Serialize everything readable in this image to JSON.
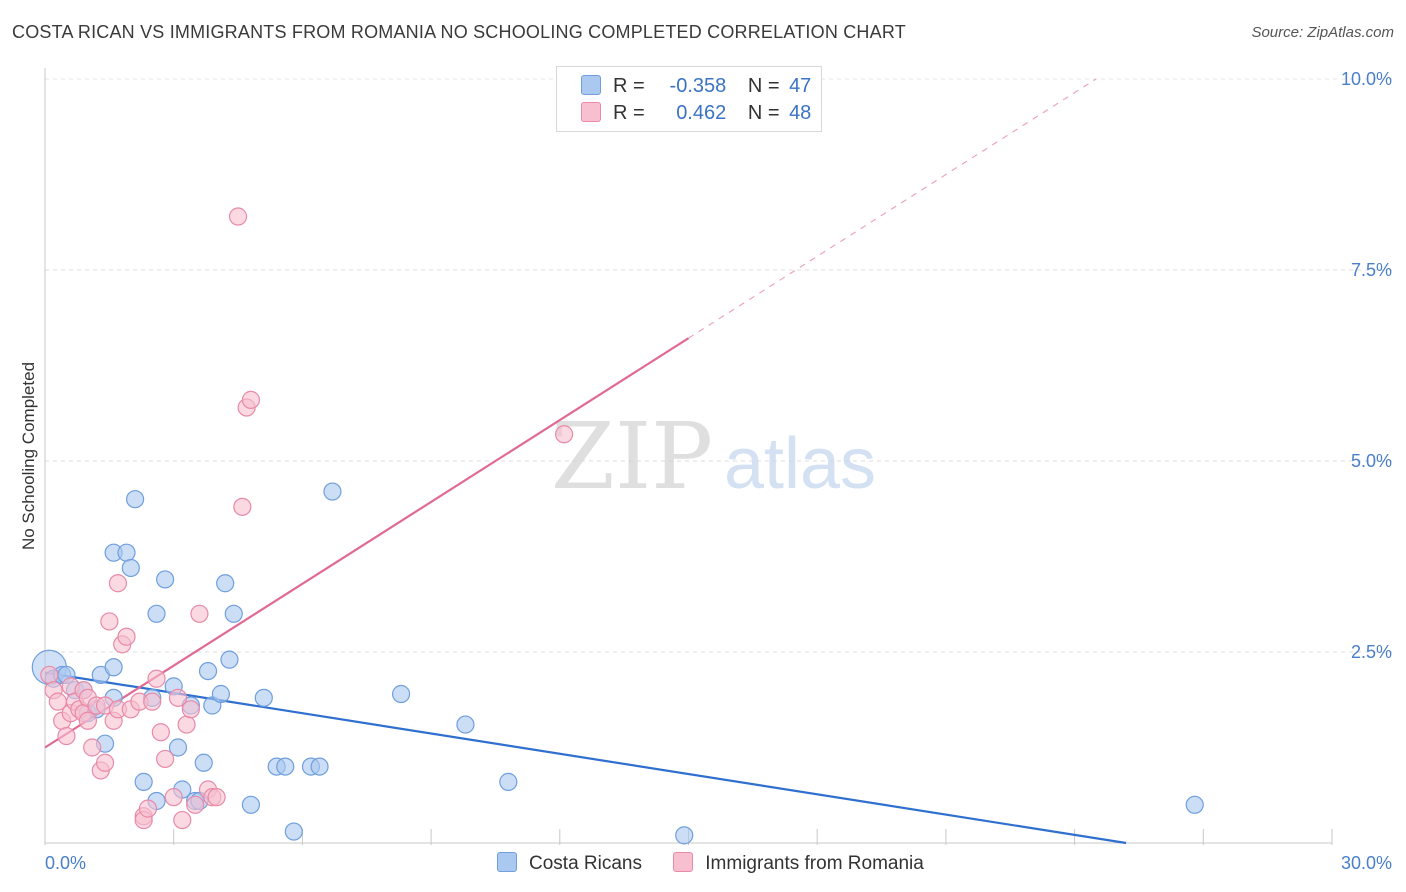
{
  "title": "COSTA RICAN VS IMMIGRANTS FROM ROMANIA NO SCHOOLING COMPLETED CORRELATION CHART",
  "source": "Source: ZipAtlas.com",
  "watermark": {
    "zip": "ZIP",
    "atlas": "atlas"
  },
  "legend": {
    "rows": [
      {
        "r_label": "R =",
        "r_value": "-0.358",
        "n_label": "N =",
        "n_value": "47",
        "color": "#aac8f0",
        "border": "#6f9fdd"
      },
      {
        "r_label": "R =",
        "r_value": "0.462",
        "n_label": "N =",
        "n_value": "48",
        "color": "#f7bfd0",
        "border": "#e88aa8"
      }
    ]
  },
  "bottom_legend": [
    {
      "label": "Costa Ricans",
      "color": "#aac8f0",
      "border": "#6f9fdd"
    },
    {
      "label": "Immigrants from Romania",
      "color": "#f7bfd0",
      "border": "#e88aa8"
    }
  ],
  "chart_data": {
    "type": "scatter",
    "title": "COSTA RICAN VS IMMIGRANTS FROM ROMANIA NO SCHOOLING COMPLETED CORRELATION CHART",
    "xlabel": "",
    "ylabel": "No Schooling Completed",
    "xlim": [
      0,
      30
    ],
    "ylim": [
      0,
      10
    ],
    "x_tick_labels": [
      "0.0%",
      "30.0%"
    ],
    "y_ticks": [
      2.5,
      5.0,
      7.5,
      10.0
    ],
    "y_tick_labels": [
      "2.5%",
      "5.0%",
      "7.5%",
      "10.0%"
    ],
    "grid": true,
    "legend_position": "top-center",
    "series": [
      {
        "name": "Costa Ricans",
        "color": "#6f9fdd",
        "fill": "#aac8f0",
        "trend": {
          "x": [
            0,
            25.2
          ],
          "y": [
            2.23,
            0.0
          ],
          "solid_until_x": 25.2
        },
        "points": [
          [
            0.1,
            2.3
          ],
          [
            0.2,
            2.15
          ],
          [
            0.4,
            2.2
          ],
          [
            0.5,
            2.2
          ],
          [
            0.7,
            2.0
          ],
          [
            0.9,
            2.0
          ],
          [
            1.0,
            1.7
          ],
          [
            1.2,
            1.75
          ],
          [
            1.3,
            2.2
          ],
          [
            1.4,
            1.3
          ],
          [
            1.6,
            2.3
          ],
          [
            1.6,
            1.9
          ],
          [
            1.6,
            3.8
          ],
          [
            1.9,
            3.8
          ],
          [
            2.0,
            3.6
          ],
          [
            2.1,
            4.5
          ],
          [
            2.3,
            0.8
          ],
          [
            2.5,
            1.9
          ],
          [
            2.6,
            0.55
          ],
          [
            2.6,
            3.0
          ],
          [
            2.8,
            3.45
          ],
          [
            3.0,
            2.05
          ],
          [
            3.1,
            1.25
          ],
          [
            3.2,
            0.7
          ],
          [
            3.4,
            1.8
          ],
          [
            3.5,
            0.55
          ],
          [
            3.6,
            0.55
          ],
          [
            3.7,
            1.05
          ],
          [
            3.8,
            2.25
          ],
          [
            3.9,
            1.8
          ],
          [
            4.1,
            1.95
          ],
          [
            4.2,
            3.4
          ],
          [
            4.3,
            2.4
          ],
          [
            4.4,
            3.0
          ],
          [
            4.8,
            0.5
          ],
          [
            5.1,
            1.9
          ],
          [
            5.4,
            1.0
          ],
          [
            5.6,
            1.0
          ],
          [
            5.8,
            0.15
          ],
          [
            6.2,
            1.0
          ],
          [
            6.4,
            1.0
          ],
          [
            6.7,
            4.6
          ],
          [
            8.3,
            1.95
          ],
          [
            9.8,
            1.55
          ],
          [
            10.8,
            0.8
          ],
          [
            14.9,
            0.1
          ],
          [
            26.8,
            0.5
          ]
        ]
      },
      {
        "name": "Immigrants from Romania",
        "color": "#e88aa8",
        "fill": "#f7bfd0",
        "trend": {
          "x": [
            0,
            24.5
          ],
          "y": [
            1.25,
            10.0
          ],
          "solid_until_x": 15.0
        },
        "points": [
          [
            0.1,
            2.2
          ],
          [
            0.2,
            2.0
          ],
          [
            0.3,
            1.85
          ],
          [
            0.4,
            1.6
          ],
          [
            0.5,
            1.4
          ],
          [
            0.6,
            2.05
          ],
          [
            0.6,
            1.7
          ],
          [
            0.7,
            1.85
          ],
          [
            0.8,
            1.75
          ],
          [
            0.9,
            2.0
          ],
          [
            0.9,
            1.7
          ],
          [
            1.0,
            1.9
          ],
          [
            1.0,
            1.6
          ],
          [
            1.1,
            1.25
          ],
          [
            1.2,
            1.8
          ],
          [
            1.3,
            0.95
          ],
          [
            1.4,
            1.05
          ],
          [
            1.4,
            1.8
          ],
          [
            1.5,
            2.9
          ],
          [
            1.6,
            1.6
          ],
          [
            1.7,
            1.75
          ],
          [
            1.7,
            3.4
          ],
          [
            1.8,
            2.6
          ],
          [
            1.9,
            2.7
          ],
          [
            2.0,
            1.75
          ],
          [
            2.2,
            1.85
          ],
          [
            2.3,
            0.35
          ],
          [
            2.3,
            0.3
          ],
          [
            2.4,
            0.45
          ],
          [
            2.5,
            1.85
          ],
          [
            2.6,
            2.15
          ],
          [
            2.7,
            1.45
          ],
          [
            2.8,
            1.1
          ],
          [
            3.0,
            0.6
          ],
          [
            3.1,
            1.9
          ],
          [
            3.2,
            0.3
          ],
          [
            3.3,
            1.55
          ],
          [
            3.4,
            1.75
          ],
          [
            3.5,
            0.5
          ],
          [
            3.6,
            3.0
          ],
          [
            3.8,
            0.7
          ],
          [
            3.9,
            0.6
          ],
          [
            4.0,
            0.6
          ],
          [
            4.5,
            8.2
          ],
          [
            4.6,
            4.4
          ],
          [
            4.7,
            5.7
          ],
          [
            4.8,
            5.8
          ],
          [
            12.1,
            5.35
          ]
        ]
      }
    ]
  }
}
